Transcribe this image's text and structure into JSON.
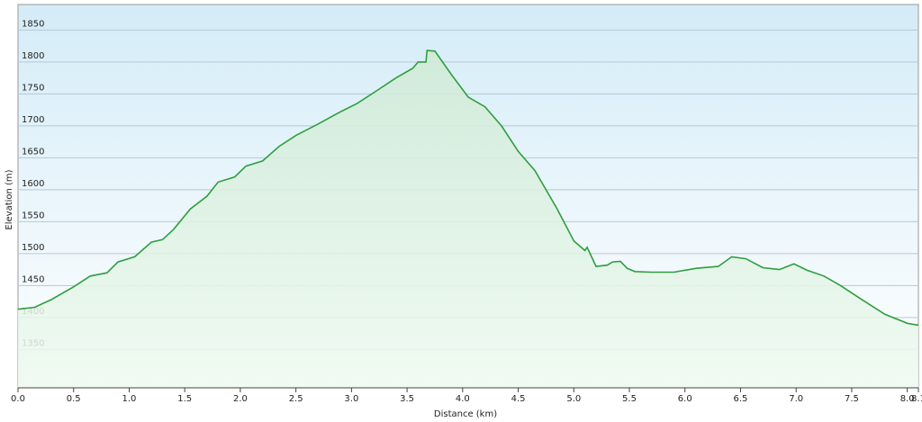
{
  "chart_data": {
    "type": "area",
    "xlabel": "Distance  (km)",
    "ylabel": "Elevation (m)",
    "x": [
      0.0,
      0.15,
      0.3,
      0.5,
      0.65,
      0.8,
      0.9,
      1.05,
      1.2,
      1.3,
      1.4,
      1.55,
      1.7,
      1.8,
      1.95,
      2.05,
      2.2,
      2.35,
      2.5,
      2.7,
      2.9,
      3.05,
      3.2,
      3.4,
      3.55,
      3.6,
      3.67,
      3.68,
      3.75,
      3.9,
      4.05,
      4.2,
      4.35,
      4.5,
      4.65,
      4.85,
      5.0,
      5.1,
      5.12,
      5.2,
      5.3,
      5.35,
      5.42,
      5.48,
      5.55,
      5.7,
      5.9,
      6.1,
      6.3,
      6.42,
      6.55,
      6.7,
      6.85,
      6.98,
      7.1,
      7.25,
      7.4,
      7.6,
      7.8,
      8.0,
      8.1
    ],
    "values": [
      1413,
      1416,
      1428,
      1448,
      1465,
      1470,
      1487,
      1495,
      1518,
      1522,
      1538,
      1570,
      1590,
      1612,
      1620,
      1637,
      1645,
      1668,
      1685,
      1703,
      1722,
      1735,
      1752,
      1775,
      1790,
      1800,
      1800,
      1818,
      1817,
      1780,
      1745,
      1730,
      1700,
      1660,
      1630,
      1570,
      1520,
      1505,
      1510,
      1480,
      1482,
      1487,
      1488,
      1477,
      1472,
      1471,
      1471,
      1477,
      1480,
      1495,
      1492,
      1478,
      1475,
      1484,
      1474,
      1465,
      1450,
      1427,
      1405,
      1391,
      1388
    ],
    "color": "#2e9e3e",
    "xlim": [
      0,
      8.1
    ],
    "ylim": [
      1290,
      1890
    ],
    "xticks": [
      {
        "value": 0,
        "label": "0.0"
      },
      0.5,
      {
        "value": 1,
        "label": "1.0"
      },
      1.5,
      {
        "value": 2,
        "label": "2.0"
      },
      2.5,
      {
        "value": 3,
        "label": "3.0"
      },
      3.5,
      {
        "value": 4,
        "label": "4.0"
      },
      4.5,
      {
        "value": 5,
        "label": "5.0"
      },
      5.5,
      {
        "value": 6,
        "label": "6.0"
      },
      6.5,
      {
        "value": 7,
        "label": "7.0"
      },
      7.5,
      {
        "value": 8,
        "label": "8.0"
      },
      8.1
    ],
    "yticks": [
      1350,
      1400,
      1450,
      1500,
      1550,
      1600,
      1650,
      1700,
      1750,
      1800,
      1850
    ],
    "grid": true
  }
}
